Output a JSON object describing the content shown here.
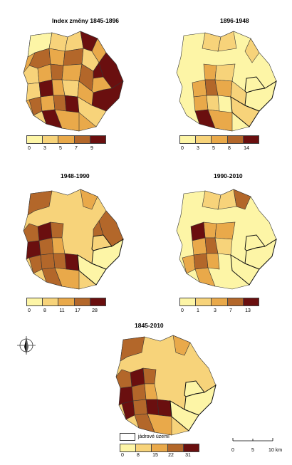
{
  "colors": [
    "#fdf5a6",
    "#f7d37a",
    "#e9a94a",
    "#b3672a",
    "#6a0f0f"
  ],
  "panels": [
    {
      "title": "Index změny 1845-1896",
      "ticks": [
        "0",
        "3",
        "5",
        "7",
        "9"
      ]
    },
    {
      "title": "1896-1948",
      "ticks": [
        "0",
        "3",
        "5",
        "8",
        "14"
      ]
    },
    {
      "title": "1948-1990",
      "ticks": [
        "0",
        "8",
        "11",
        "17",
        "28"
      ]
    },
    {
      "title": "1990-2010",
      "ticks": [
        "0",
        "1",
        "3",
        "7",
        "13"
      ]
    },
    {
      "title": "1845-2010",
      "ticks": [
        "0",
        "8",
        "15",
        "22",
        "31"
      ]
    }
  ],
  "core_legend": {
    "label": "jádrové území"
  },
  "scalebar": {
    "labels": [
      "0",
      "5",
      "10 km"
    ]
  },
  "compass": {
    "icon": "north-arrow-icon"
  }
}
